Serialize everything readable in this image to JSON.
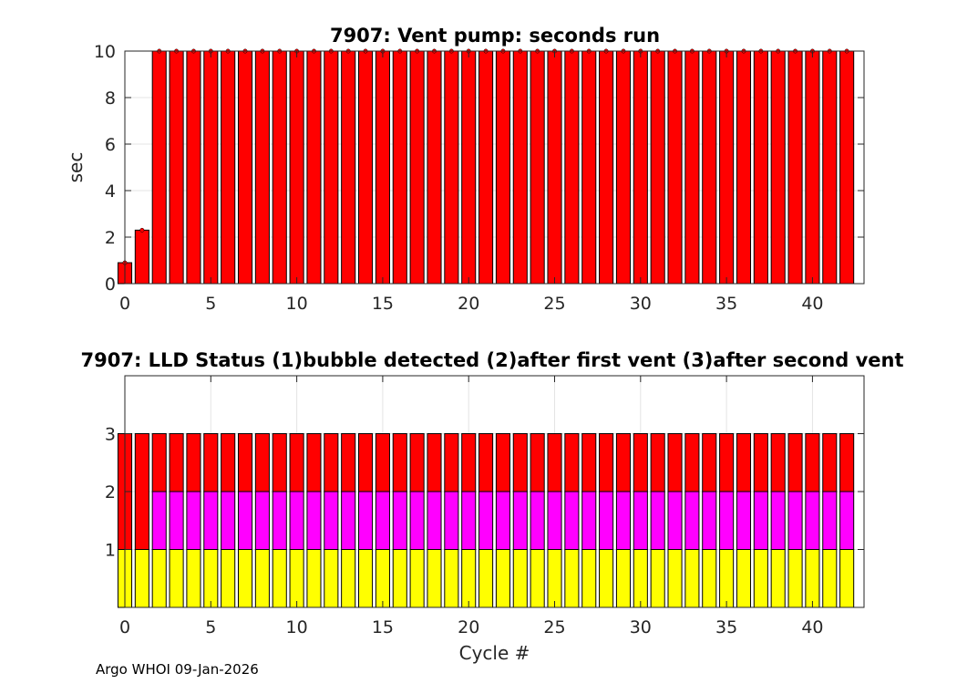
{
  "footer": "Argo WHOI 09-Jan-2026",
  "chart_data": [
    {
      "type": "bar",
      "title": "7907: Vent pump: seconds run",
      "xlabel": "",
      "ylabel": "sec",
      "xlim": [
        0,
        43
      ],
      "ylim": [
        0,
        10
      ],
      "xticks": [
        0,
        5,
        10,
        15,
        20,
        25,
        30,
        35,
        40
      ],
      "yticks": [
        0,
        2,
        4,
        6,
        8,
        10
      ],
      "grid": true,
      "color": "#ff0000",
      "x": [
        0,
        1,
        2,
        3,
        4,
        5,
        6,
        7,
        8,
        9,
        10,
        11,
        12,
        13,
        14,
        15,
        16,
        17,
        18,
        19,
        20,
        21,
        22,
        23,
        24,
        25,
        26,
        27,
        28,
        29,
        30,
        31,
        32,
        33,
        34,
        35,
        36,
        37,
        38,
        39,
        40,
        41,
        42
      ],
      "values": [
        0.9,
        2.3,
        10,
        10,
        10,
        10,
        10,
        10,
        10,
        10,
        10,
        10,
        10,
        10,
        10,
        10,
        10,
        10,
        10,
        10,
        10,
        10,
        10,
        10,
        10,
        10,
        10,
        10,
        10,
        10,
        10,
        10,
        10,
        10,
        10,
        10,
        10,
        10,
        10,
        10,
        10,
        10,
        10
      ]
    },
    {
      "type": "bar",
      "stacked": true,
      "title": "7907: LLD Status   (1)bubble detected   (2)after first vent  (3)after second vent",
      "xlabel": "Cycle #",
      "ylabel": "",
      "xlim": [
        0,
        43
      ],
      "ylim": [
        0,
        4
      ],
      "xticks": [
        0,
        5,
        10,
        15,
        20,
        25,
        30,
        35,
        40
      ],
      "yticks": [
        1,
        2,
        3
      ],
      "grid": true,
      "x": [
        0,
        1,
        2,
        3,
        4,
        5,
        6,
        7,
        8,
        9,
        10,
        11,
        12,
        13,
        14,
        15,
        16,
        17,
        18,
        19,
        20,
        21,
        22,
        23,
        24,
        25,
        26,
        27,
        28,
        29,
        30,
        31,
        32,
        33,
        34,
        35,
        36,
        37,
        38,
        39,
        40,
        41,
        42
      ],
      "series": [
        {
          "color": "#ffff00",
          "values": [
            1,
            1,
            1,
            1,
            1,
            1,
            1,
            1,
            1,
            1,
            1,
            1,
            1,
            1,
            1,
            1,
            1,
            1,
            1,
            1,
            1,
            1,
            1,
            1,
            1,
            1,
            1,
            1,
            1,
            1,
            1,
            1,
            1,
            1,
            1,
            1,
            1,
            1,
            1,
            1,
            1,
            1,
            1
          ]
        },
        {
          "color": "#ff00ff",
          "values": [
            0,
            0,
            1,
            1,
            1,
            1,
            1,
            1,
            1,
            1,
            1,
            1,
            1,
            1,
            1,
            1,
            1,
            1,
            1,
            1,
            1,
            1,
            1,
            1,
            1,
            1,
            1,
            1,
            1,
            1,
            1,
            1,
            1,
            1,
            1,
            1,
            1,
            1,
            1,
            1,
            1,
            1,
            1
          ]
        },
        {
          "color": "#ff0000",
          "values": [
            2,
            2,
            1,
            1,
            1,
            1,
            1,
            1,
            1,
            1,
            1,
            1,
            1,
            1,
            1,
            1,
            1,
            1,
            1,
            1,
            1,
            1,
            1,
            1,
            1,
            1,
            1,
            1,
            1,
            1,
            1,
            1,
            1,
            1,
            1,
            1,
            1,
            1,
            1,
            1,
            1,
            1,
            1
          ]
        }
      ]
    }
  ]
}
